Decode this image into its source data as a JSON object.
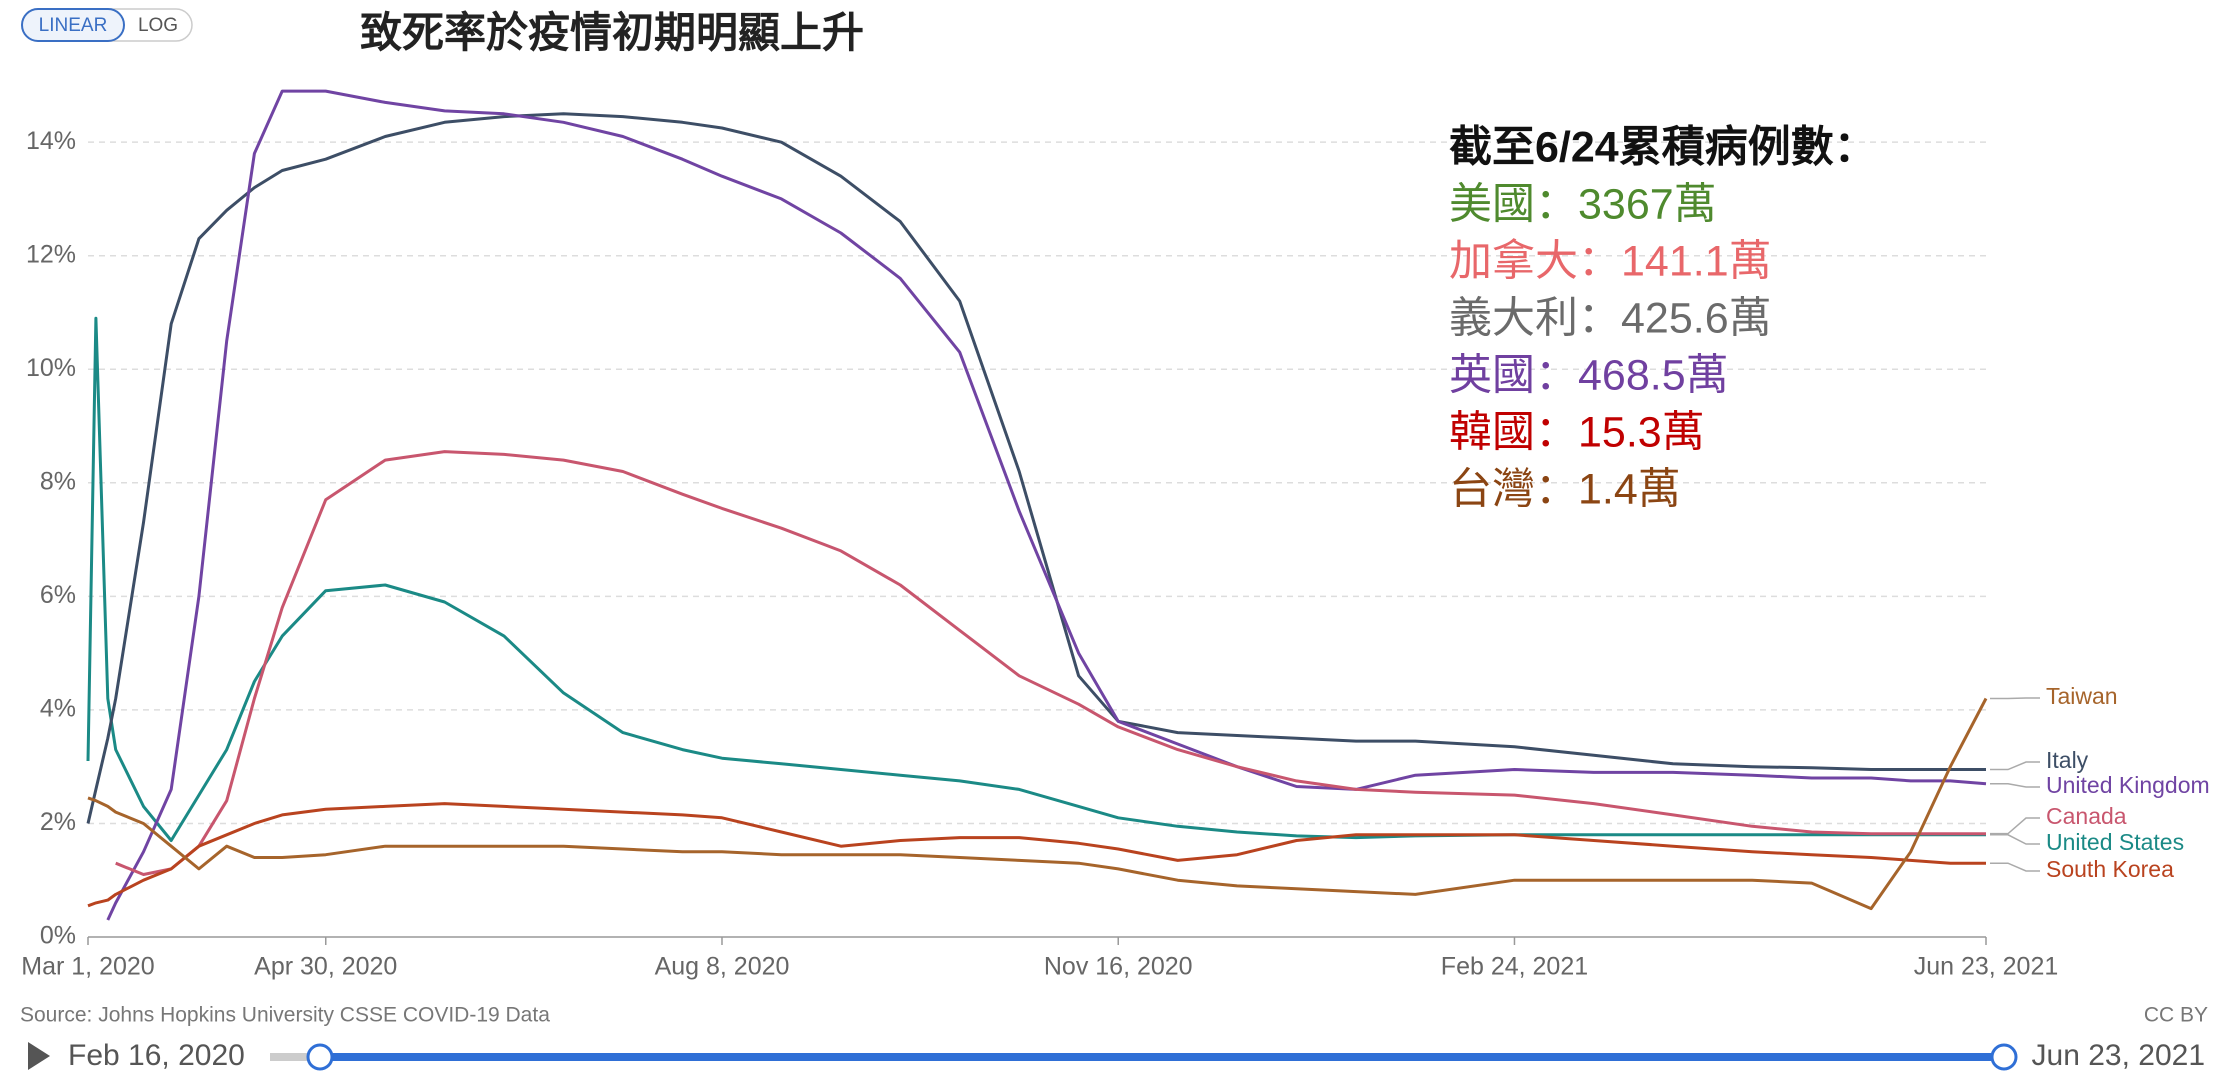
{
  "controls": {
    "buttons": [
      "LINEAR",
      "LOG"
    ]
  },
  "chart_data": {
    "type": "line",
    "title": "致死率於疫情初期明顯上升",
    "annotation": [
      {
        "text": "截至6/24累積病例數：",
        "color": "#111111"
      },
      {
        "text": "美國：3367萬",
        "color": "#4f8a2e"
      },
      {
        "text": "加拿大：141.1萬",
        "color": "#e8676a"
      },
      {
        "text": "義大利：425.6萬",
        "color": "#6b6b6b"
      },
      {
        "text": "英國：468.5萬",
        "color": "#7040a0"
      },
      {
        "text": "韓國：15.3萬",
        "color": "#c00000"
      },
      {
        "text": "台灣：1.4萬",
        "color": "#8b4513"
      }
    ],
    "x": [
      "2020-03-01",
      "2020-03-03",
      "2020-03-06",
      "2020-03-08",
      "2020-03-15",
      "2020-03-22",
      "2020-03-29",
      "2020-04-05",
      "2020-04-12",
      "2020-04-19",
      "2020-04-30",
      "2020-05-15",
      "2020-05-30",
      "2020-06-14",
      "2020-06-29",
      "2020-07-14",
      "2020-07-29",
      "2020-08-08",
      "2020-08-23",
      "2020-09-07",
      "2020-09-22",
      "2020-10-07",
      "2020-10-22",
      "2020-11-06",
      "2020-11-16",
      "2020-12-01",
      "2020-12-16",
      "2020-12-31",
      "2021-01-15",
      "2021-01-30",
      "2021-02-24",
      "2021-03-16",
      "2021-04-05",
      "2021-04-25",
      "2021-05-10",
      "2021-05-25",
      "2021-06-04",
      "2021-06-14",
      "2021-06-23"
    ],
    "series": [
      {
        "name": "United States",
        "color": "#1b8a86",
        "values": [
          3.1,
          10.9,
          4.2,
          3.3,
          2.3,
          1.7,
          2.5,
          3.3,
          4.5,
          5.3,
          6.1,
          6.2,
          5.9,
          5.3,
          4.3,
          3.6,
          3.3,
          3.15,
          3.05,
          2.95,
          2.85,
          2.75,
          2.6,
          2.3,
          2.1,
          1.95,
          1.85,
          1.78,
          1.75,
          1.78,
          1.8,
          1.8,
          1.8,
          1.8,
          1.8,
          1.8,
          1.8,
          1.8,
          1.8
        ]
      },
      {
        "name": "Italy",
        "color": "#3d4e66",
        "values": [
          2.0,
          2.6,
          3.5,
          4.2,
          7.3,
          10.8,
          12.3,
          12.8,
          13.2,
          13.5,
          13.7,
          14.1,
          14.35,
          14.45,
          14.5,
          14.45,
          14.35,
          14.25,
          14.0,
          13.4,
          12.6,
          11.2,
          8.2,
          4.6,
          3.8,
          3.6,
          3.55,
          3.5,
          3.45,
          3.45,
          3.35,
          3.2,
          3.05,
          3.0,
          2.98,
          2.95,
          2.95,
          2.95,
          2.95
        ]
      },
      {
        "name": "United Kingdom",
        "color": "#7044a3",
        "values": [
          null,
          null,
          0.3,
          0.6,
          1.5,
          2.6,
          6.0,
          10.5,
          13.8,
          14.9,
          14.9,
          14.7,
          14.55,
          14.5,
          14.35,
          14.1,
          13.7,
          13.4,
          13.0,
          12.4,
          11.6,
          10.3,
          7.5,
          5.0,
          3.8,
          3.4,
          3.0,
          2.65,
          2.6,
          2.85,
          2.95,
          2.9,
          2.9,
          2.85,
          2.8,
          2.8,
          2.75,
          2.75,
          2.7
        ]
      },
      {
        "name": "Canada",
        "color": "#c8566e",
        "values": [
          null,
          null,
          null,
          1.3,
          1.1,
          1.2,
          1.6,
          2.4,
          4.2,
          5.8,
          7.7,
          8.4,
          8.55,
          8.5,
          8.4,
          8.2,
          7.8,
          7.55,
          7.2,
          6.8,
          6.2,
          5.4,
          4.6,
          4.1,
          3.7,
          3.3,
          3.0,
          2.75,
          2.6,
          2.55,
          2.5,
          2.35,
          2.15,
          1.95,
          1.85,
          1.82,
          1.82,
          1.82,
          1.82
        ]
      },
      {
        "name": "South Korea",
        "color": "#b9431f",
        "values": [
          0.55,
          0.6,
          0.65,
          0.75,
          1.0,
          1.2,
          1.6,
          1.8,
          2.0,
          2.15,
          2.25,
          2.3,
          2.35,
          2.3,
          2.25,
          2.2,
          2.15,
          2.1,
          1.85,
          1.6,
          1.7,
          1.75,
          1.75,
          1.65,
          1.55,
          1.35,
          1.45,
          1.7,
          1.8,
          1.8,
          1.8,
          1.7,
          1.6,
          1.5,
          1.45,
          1.4,
          1.35,
          1.3,
          1.3
        ]
      },
      {
        "name": "Taiwan",
        "color": "#a6642b",
        "values": [
          2.45,
          2.4,
          2.3,
          2.2,
          2.0,
          1.6,
          1.2,
          1.6,
          1.4,
          1.4,
          1.45,
          1.6,
          1.6,
          1.6,
          1.6,
          1.55,
          1.5,
          1.5,
          1.45,
          1.45,
          1.45,
          1.4,
          1.35,
          1.3,
          1.2,
          1.0,
          0.9,
          0.85,
          0.8,
          0.75,
          1.0,
          1.0,
          1.0,
          1.0,
          0.95,
          0.5,
          1.5,
          3.0,
          4.2
        ]
      }
    ],
    "xlim": [
      "2020-03-01",
      "2021-06-23"
    ],
    "xticks": [
      {
        "value": "2020-03-01",
        "label": "Mar 1, 2020"
      },
      {
        "value": "2020-04-30",
        "label": "Apr 30, 2020"
      },
      {
        "value": "2020-08-08",
        "label": "Aug 8, 2020"
      },
      {
        "value": "2020-11-16",
        "label": "Nov 16, 2020"
      },
      {
        "value": "2021-02-24",
        "label": "Feb 24, 2021"
      },
      {
        "value": "2021-06-23",
        "label": "Jun 23, 2021"
      }
    ],
    "ylim": [
      0,
      15.5
    ],
    "yticks": [
      {
        "value": 0,
        "label": "0%"
      },
      {
        "value": 2,
        "label": "2%"
      },
      {
        "value": 4,
        "label": "4%"
      },
      {
        "value": 6,
        "label": "6%"
      },
      {
        "value": 8,
        "label": "8%"
      },
      {
        "value": 10,
        "label": "10%"
      },
      {
        "value": 12,
        "label": "12%"
      },
      {
        "value": 14,
        "label": "14%"
      }
    ],
    "grid": true
  },
  "footer": {
    "source": "Source: Johns Hopkins University CSSE COVID-19 Data",
    "license": "CC BY"
  },
  "timeline": {
    "start": "Feb 16, 2020",
    "end": "Jun 23, 2021"
  }
}
